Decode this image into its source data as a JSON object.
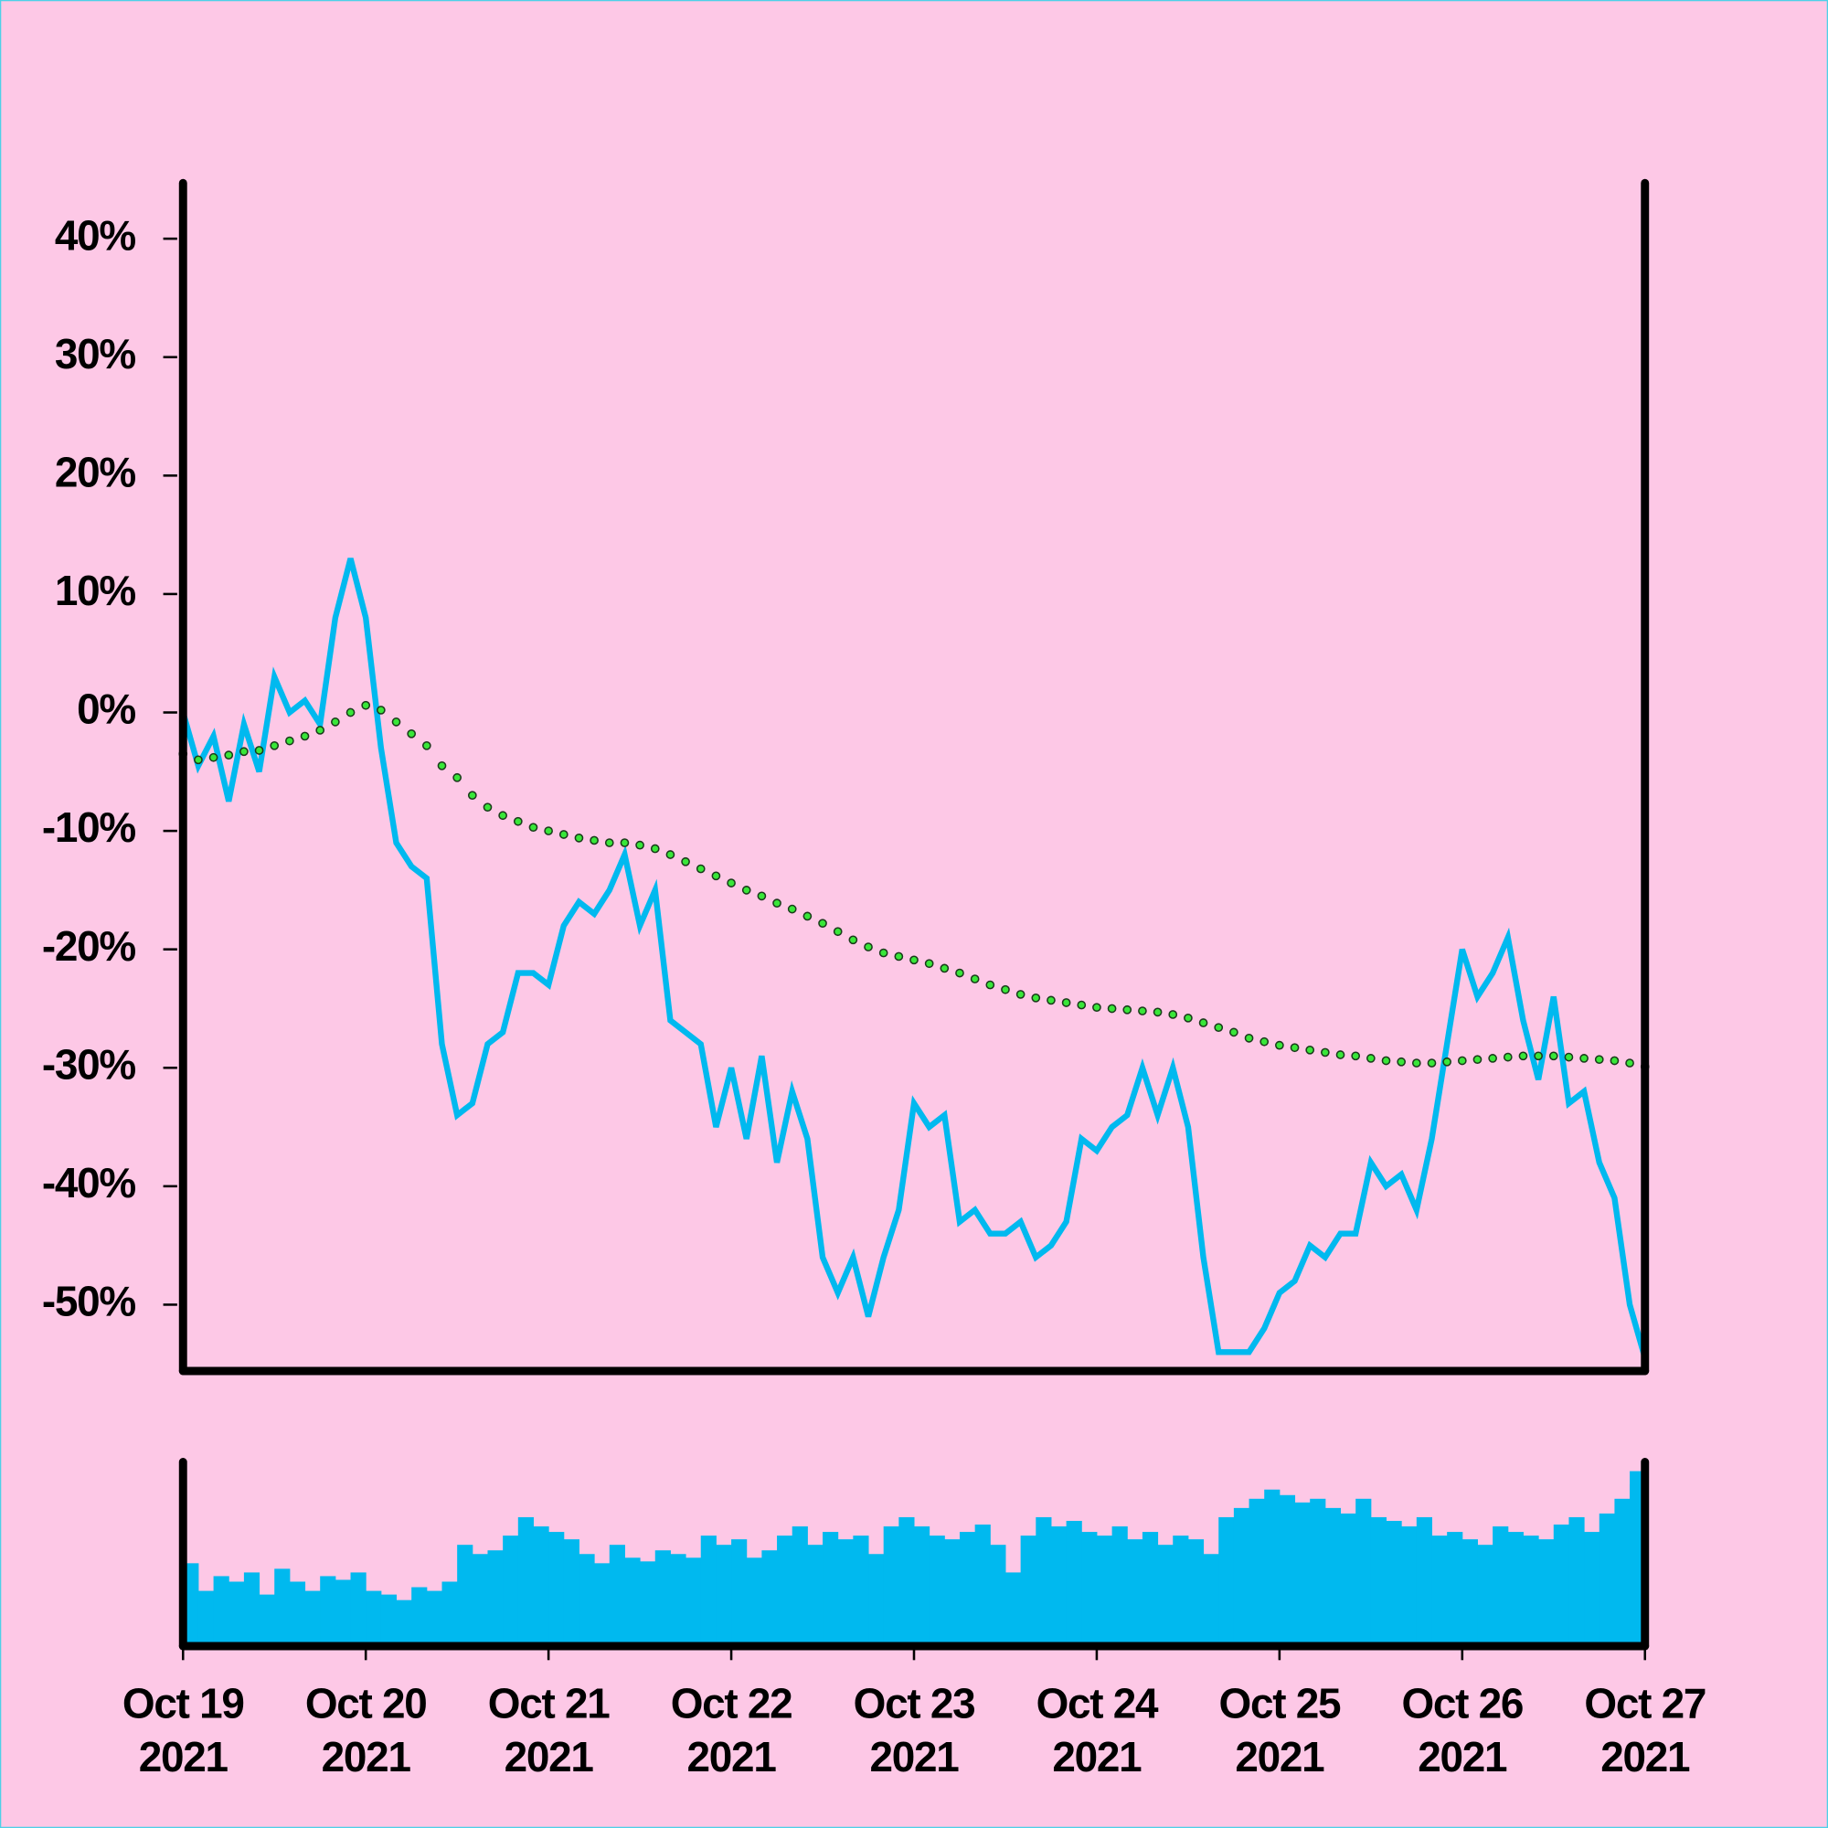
{
  "chart_data": [
    {
      "type": "line",
      "x": [
        "2021-10-19 00:00",
        "2021-10-19 02:00",
        "2021-10-19 04:00",
        "2021-10-19 06:00",
        "2021-10-19 08:00",
        "2021-10-19 10:00",
        "2021-10-19 12:00",
        "2021-10-19 14:00",
        "2021-10-19 16:00",
        "2021-10-19 18:00",
        "2021-10-19 20:00",
        "2021-10-19 22:00",
        "2021-10-20 00:00",
        "2021-10-20 02:00",
        "2021-10-20 04:00",
        "2021-10-20 06:00",
        "2021-10-20 08:00",
        "2021-10-20 10:00",
        "2021-10-20 12:00",
        "2021-10-20 14:00",
        "2021-10-20 16:00",
        "2021-10-20 18:00",
        "2021-10-20 20:00",
        "2021-10-20 22:00",
        "2021-10-21 00:00",
        "2021-10-21 02:00",
        "2021-10-21 04:00",
        "2021-10-21 06:00",
        "2021-10-21 08:00",
        "2021-10-21 10:00",
        "2021-10-21 12:00",
        "2021-10-21 14:00",
        "2021-10-21 16:00",
        "2021-10-21 18:00",
        "2021-10-21 20:00",
        "2021-10-21 22:00",
        "2021-10-22 00:00",
        "2021-10-22 02:00",
        "2021-10-22 04:00",
        "2021-10-22 06:00",
        "2021-10-22 08:00",
        "2021-10-22 10:00",
        "2021-10-22 12:00",
        "2021-10-22 14:00",
        "2021-10-22 16:00",
        "2021-10-22 18:00",
        "2021-10-22 20:00",
        "2021-10-22 22:00",
        "2021-10-23 00:00",
        "2021-10-23 02:00",
        "2021-10-23 04:00",
        "2021-10-23 06:00",
        "2021-10-23 08:00",
        "2021-10-23 10:00",
        "2021-10-23 12:00",
        "2021-10-23 14:00",
        "2021-10-23 16:00",
        "2021-10-23 18:00",
        "2021-10-23 20:00",
        "2021-10-23 22:00",
        "2021-10-24 00:00",
        "2021-10-24 02:00",
        "2021-10-24 04:00",
        "2021-10-24 06:00",
        "2021-10-24 08:00",
        "2021-10-24 10:00",
        "2021-10-24 12:00",
        "2021-10-24 14:00",
        "2021-10-24 16:00",
        "2021-10-24 18:00",
        "2021-10-24 20:00",
        "2021-10-24 22:00",
        "2021-10-25 00:00",
        "2021-10-25 02:00",
        "2021-10-25 04:00",
        "2021-10-25 06:00",
        "2021-10-25 08:00",
        "2021-10-25 10:00",
        "2021-10-25 12:00",
        "2021-10-25 14:00",
        "2021-10-25 16:00",
        "2021-10-25 18:00",
        "2021-10-25 20:00",
        "2021-10-25 22:00",
        "2021-10-26 00:00",
        "2021-10-26 02:00",
        "2021-10-26 04:00",
        "2021-10-26 06:00",
        "2021-10-26 08:00",
        "2021-10-26 10:00",
        "2021-10-26 12:00",
        "2021-10-26 14:00",
        "2021-10-26 16:00",
        "2021-10-26 18:00",
        "2021-10-26 20:00",
        "2021-10-26 22:00",
        "2021-10-27 00:00"
      ],
      "series": [
        {
          "color": "#00b9ef",
          "style": "line",
          "values": [
            0,
            -4.5,
            -2,
            -7.5,
            -1,
            -5,
            3,
            0,
            1,
            -1,
            8,
            13,
            8,
            -3,
            -11,
            -13,
            -14,
            -28,
            -34,
            -33,
            -28,
            -27,
            -22,
            -22,
            -23,
            -18,
            -16,
            -17,
            -15,
            -12,
            -18,
            -15,
            -26,
            -27,
            -28,
            -35,
            -30,
            -36,
            -29,
            -38,
            -32,
            -36,
            -46,
            -49,
            -46,
            -51,
            -46,
            -42,
            -33,
            -35,
            -34,
            -43,
            -42,
            -44,
            -44,
            -43,
            -46,
            -45,
            -43,
            -36,
            -37,
            -35,
            -34,
            -30,
            -34,
            -30,
            -35,
            -46,
            -54,
            -54,
            -54,
            -52,
            -49,
            -48,
            -45,
            -46,
            -44,
            -44,
            -38,
            -40,
            -39,
            -42,
            -36,
            -28,
            -20,
            -24,
            -22,
            -19,
            -26,
            -31,
            -24,
            -33,
            -32,
            -38,
            -41,
            -50,
            -54.5
          ]
        },
        {
          "color": "#39e639",
          "style": "dots",
          "values": [
            -3.5,
            -4,
            -3.8,
            -3.6,
            -3.3,
            -3.2,
            -2.8,
            -2.4,
            -2,
            -1.5,
            -0.8,
            0,
            0.6,
            0.2,
            -0.8,
            -1.8,
            -2.8,
            -4.5,
            -5.5,
            -7,
            -8,
            -8.7,
            -9.2,
            -9.7,
            -10,
            -10.3,
            -10.6,
            -10.8,
            -11,
            -11,
            -11.2,
            -11.5,
            -12,
            -12.6,
            -13.2,
            -13.8,
            -14.4,
            -15,
            -15.5,
            -16.1,
            -16.6,
            -17.2,
            -17.8,
            -18.5,
            -19.2,
            -19.8,
            -20.3,
            -20.6,
            -20.9,
            -21.2,
            -21.6,
            -22,
            -22.5,
            -23,
            -23.4,
            -23.8,
            -24.1,
            -24.3,
            -24.5,
            -24.7,
            -24.9,
            -25,
            -25.1,
            -25.2,
            -25.3,
            -25.5,
            -25.8,
            -26.2,
            -26.6,
            -27,
            -27.5,
            -27.8,
            -28.1,
            -28.3,
            -28.5,
            -28.7,
            -28.9,
            -29,
            -29.2,
            -29.4,
            -29.5,
            -29.6,
            -29.6,
            -29.5,
            -29.4,
            -29.3,
            -29.2,
            -29.1,
            -29,
            -29,
            -29,
            -29.1,
            -29.2,
            -29.3,
            -29.4,
            -29.6,
            -29.9
          ]
        }
      ],
      "xlim": [
        "2021-10-19",
        "2021-10-27"
      ],
      "ylim": [
        -55.6,
        44.7
      ],
      "yticks": [
        {
          "value": -50,
          "label": "-50%"
        },
        {
          "value": -40,
          "label": "-40%"
        },
        {
          "value": -30,
          "label": "-30%"
        },
        {
          "value": -20,
          "label": "-20%"
        },
        {
          "value": -10,
          "label": "-10%"
        },
        {
          "value": 0,
          "label": "0%"
        },
        {
          "value": 10,
          "label": "10%"
        },
        {
          "value": 20,
          "label": "20%"
        },
        {
          "value": 30,
          "label": "30%"
        },
        {
          "value": 40,
          "label": "40%"
        }
      ]
    },
    {
      "type": "bar",
      "color": "#00b9ef",
      "x": [
        "2021-10-19 00:00",
        "2021-10-19 02:00",
        "2021-10-19 04:00",
        "2021-10-19 06:00",
        "2021-10-19 08:00",
        "2021-10-19 10:00",
        "2021-10-19 12:00",
        "2021-10-19 14:00",
        "2021-10-19 16:00",
        "2021-10-19 18:00",
        "2021-10-19 20:00",
        "2021-10-19 22:00",
        "2021-10-20 00:00",
        "2021-10-20 02:00",
        "2021-10-20 04:00",
        "2021-10-20 06:00",
        "2021-10-20 08:00",
        "2021-10-20 10:00",
        "2021-10-20 12:00",
        "2021-10-20 14:00",
        "2021-10-20 16:00",
        "2021-10-20 18:00",
        "2021-10-20 20:00",
        "2021-10-20 22:00",
        "2021-10-21 00:00",
        "2021-10-21 02:00",
        "2021-10-21 04:00",
        "2021-10-21 06:00",
        "2021-10-21 08:00",
        "2021-10-21 10:00",
        "2021-10-21 12:00",
        "2021-10-21 14:00",
        "2021-10-21 16:00",
        "2021-10-21 18:00",
        "2021-10-21 20:00",
        "2021-10-21 22:00",
        "2021-10-22 00:00",
        "2021-10-22 02:00",
        "2021-10-22 04:00",
        "2021-10-22 06:00",
        "2021-10-22 08:00",
        "2021-10-22 10:00",
        "2021-10-22 12:00",
        "2021-10-22 14:00",
        "2021-10-22 16:00",
        "2021-10-22 18:00",
        "2021-10-22 20:00",
        "2021-10-22 22:00",
        "2021-10-23 00:00",
        "2021-10-23 02:00",
        "2021-10-23 04:00",
        "2021-10-23 06:00",
        "2021-10-23 08:00",
        "2021-10-23 10:00",
        "2021-10-23 12:00",
        "2021-10-23 14:00",
        "2021-10-23 16:00",
        "2021-10-23 18:00",
        "2021-10-23 20:00",
        "2021-10-23 22:00",
        "2021-10-24 00:00",
        "2021-10-24 02:00",
        "2021-10-24 04:00",
        "2021-10-24 06:00",
        "2021-10-24 08:00",
        "2021-10-24 10:00",
        "2021-10-24 12:00",
        "2021-10-24 14:00",
        "2021-10-24 16:00",
        "2021-10-24 18:00",
        "2021-10-24 20:00",
        "2021-10-24 22:00",
        "2021-10-25 00:00",
        "2021-10-25 02:00",
        "2021-10-25 04:00",
        "2021-10-25 06:00",
        "2021-10-25 08:00",
        "2021-10-25 10:00",
        "2021-10-25 12:00",
        "2021-10-25 14:00",
        "2021-10-25 16:00",
        "2021-10-25 18:00",
        "2021-10-25 20:00",
        "2021-10-25 22:00",
        "2021-10-26 00:00",
        "2021-10-26 02:00",
        "2021-10-26 04:00",
        "2021-10-26 06:00",
        "2021-10-26 08:00",
        "2021-10-26 10:00",
        "2021-10-26 12:00",
        "2021-10-26 14:00",
        "2021-10-26 16:00",
        "2021-10-26 18:00",
        "2021-10-26 20:00",
        "2021-10-26 22:00",
        "2021-10-27 00:00"
      ],
      "values": [
        45,
        30,
        38,
        35,
        40,
        28,
        42,
        35,
        30,
        38,
        36,
        40,
        30,
        28,
        25,
        32,
        30,
        35,
        55,
        50,
        52,
        60,
        70,
        65,
        62,
        58,
        50,
        45,
        55,
        48,
        46,
        52,
        50,
        48,
        60,
        55,
        58,
        48,
        52,
        60,
        65,
        55,
        62,
        58,
        60,
        50,
        65,
        70,
        65,
        60,
        58,
        62,
        66,
        55,
        40,
        60,
        70,
        65,
        68,
        62,
        60,
        65,
        58,
        62,
        55,
        60,
        58,
        50,
        70,
        75,
        80,
        85,
        82,
        78,
        80,
        75,
        72,
        80,
        70,
        68,
        65,
        70,
        60,
        62,
        58,
        55,
        65,
        62,
        60,
        58,
        66,
        70,
        62,
        72,
        80,
        88,
        95
      ],
      "ylim": [
        0,
        100
      ],
      "xlim": [
        "2021-10-19",
        "2021-10-27"
      ],
      "xticks": [
        {
          "value": "2021-10-19",
          "label": [
            "Oct 19",
            "2021"
          ]
        },
        {
          "value": "2021-10-20",
          "label": [
            "Oct 20",
            "2021"
          ]
        },
        {
          "value": "2021-10-21",
          "label": [
            "Oct 21",
            "2021"
          ]
        },
        {
          "value": "2021-10-22",
          "label": [
            "Oct 22",
            "2021"
          ]
        },
        {
          "value": "2021-10-23",
          "label": [
            "Oct 23",
            "2021"
          ]
        },
        {
          "value": "2021-10-24",
          "label": [
            "Oct 24",
            "2021"
          ]
        },
        {
          "value": "2021-10-25",
          "label": [
            "Oct 25",
            "2021"
          ]
        },
        {
          "value": "2021-10-26",
          "label": [
            "Oct 26",
            "2021"
          ]
        },
        {
          "value": "2021-10-27",
          "label": [
            "Oct 27",
            "2021"
          ]
        }
      ]
    }
  ]
}
